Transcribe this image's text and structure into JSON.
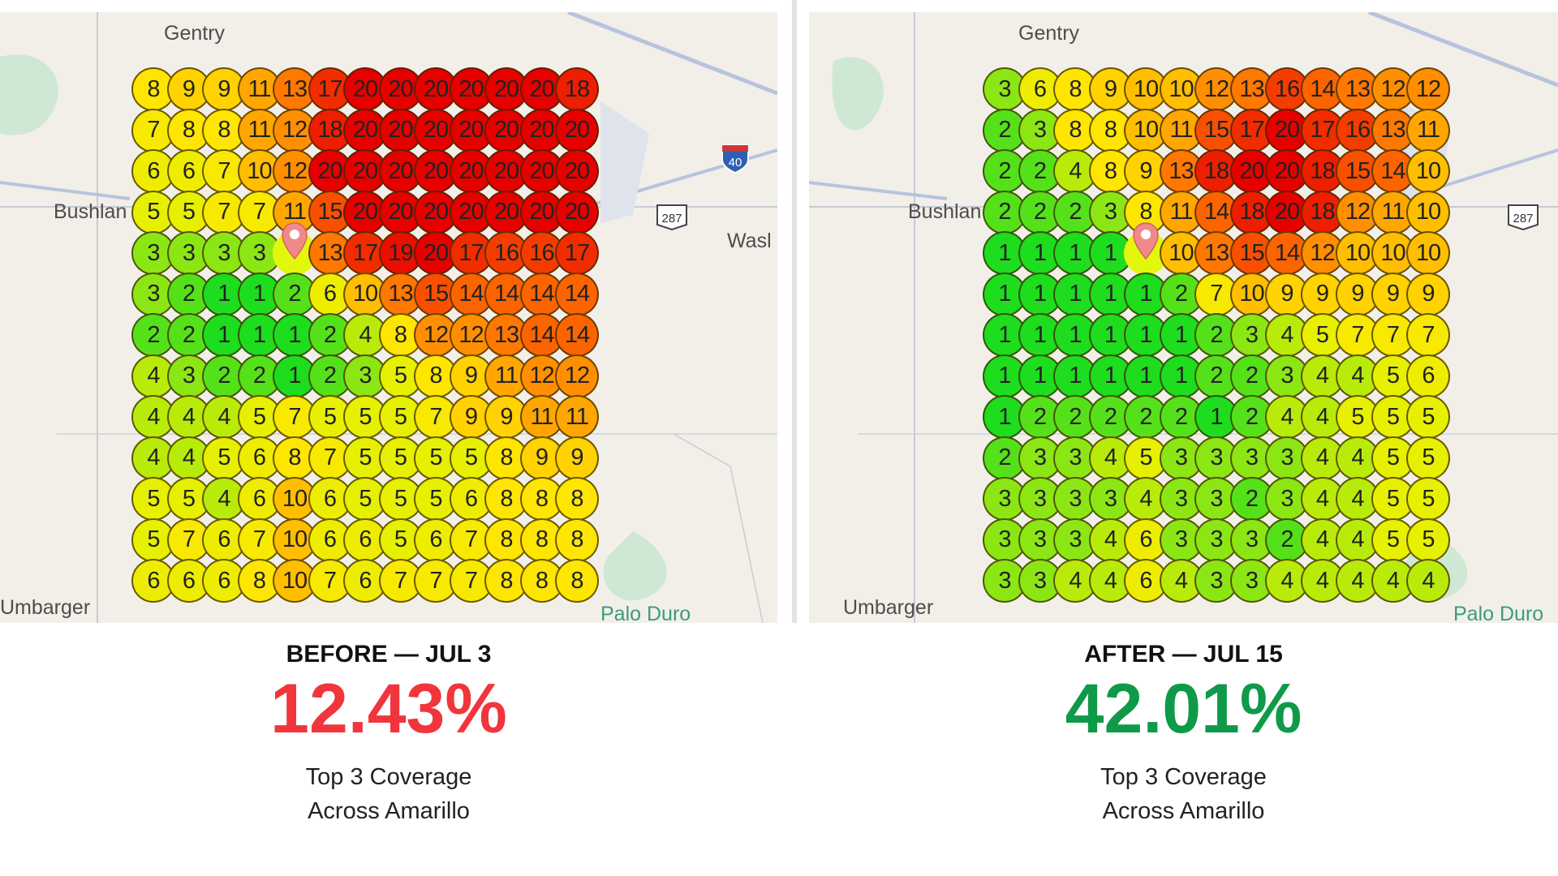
{
  "before": {
    "title": "BEFORE — JUL 3",
    "percent": "12.43%",
    "percent_color": "#f0363c",
    "subtitle_line1": "Top 3 Coverage",
    "subtitle_line2": "Across Amarillo",
    "places": {
      "gentry": "Gentry",
      "bushland": "Bushlan",
      "washburn": "Wasl",
      "umbarger": "Umbarger",
      "palo_duro": "Palo Duro"
    },
    "highway_labels": {
      "i40": "40",
      "us287": "287"
    },
    "pin_icon": "map-pin-icon",
    "grid": [
      [
        8,
        9,
        9,
        11,
        13,
        17,
        20,
        20,
        20,
        20,
        20,
        20,
        18
      ],
      [
        7,
        8,
        8,
        11,
        12,
        18,
        20,
        20,
        20,
        20,
        20,
        20,
        20
      ],
      [
        6,
        6,
        7,
        10,
        12,
        20,
        20,
        20,
        20,
        20,
        20,
        20,
        20
      ],
      [
        5,
        5,
        7,
        7,
        11,
        15,
        20,
        20,
        20,
        20,
        20,
        20,
        20
      ],
      [
        3,
        3,
        3,
        3,
        null,
        13,
        17,
        19,
        20,
        17,
        16,
        16,
        17
      ],
      [
        3,
        2,
        1,
        1,
        2,
        6,
        10,
        13,
        15,
        14,
        14,
        14,
        14
      ],
      [
        2,
        2,
        1,
        1,
        1,
        2,
        4,
        8,
        12,
        12,
        13,
        14,
        14
      ],
      [
        4,
        3,
        2,
        2,
        1,
        2,
        3,
        5,
        8,
        9,
        11,
        12,
        12
      ],
      [
        4,
        4,
        4,
        5,
        7,
        5,
        5,
        5,
        7,
        9,
        9,
        11,
        11
      ],
      [
        4,
        4,
        5,
        6,
        8,
        7,
        5,
        5,
        5,
        5,
        8,
        9,
        9
      ],
      [
        5,
        5,
        4,
        6,
        10,
        6,
        5,
        5,
        5,
        6,
        8,
        8,
        8
      ],
      [
        5,
        7,
        6,
        7,
        10,
        6,
        6,
        5,
        6,
        7,
        8,
        8,
        8
      ],
      [
        6,
        6,
        6,
        8,
        10,
        7,
        6,
        7,
        7,
        7,
        8,
        8,
        8
      ]
    ]
  },
  "after": {
    "title": "AFTER — JUL 15",
    "percent": "42.01%",
    "percent_color": "#0e9a48",
    "subtitle_line1": "Top 3 Coverage",
    "subtitle_line2": "Across Amarillo",
    "places": {
      "gentry": "Gentry",
      "bushland": "Bushlan",
      "umbarger": "Umbarger",
      "palo_duro": "Palo Duro"
    },
    "highway_labels": {
      "us287": "287"
    },
    "pin_icon": "map-pin-icon",
    "grid": [
      [
        3,
        6,
        8,
        9,
        10,
        10,
        12,
        13,
        16,
        14,
        13,
        12,
        12
      ],
      [
        2,
        3,
        8,
        8,
        10,
        11,
        15,
        17,
        20,
        17,
        16,
        13,
        11
      ],
      [
        2,
        2,
        4,
        8,
        9,
        13,
        18,
        20,
        20,
        18,
        15,
        14,
        10
      ],
      [
        2,
        2,
        2,
        3,
        8,
        11,
        14,
        18,
        20,
        18,
        12,
        11,
        10
      ],
      [
        1,
        1,
        1,
        1,
        null,
        10,
        13,
        15,
        14,
        12,
        10,
        10,
        10
      ],
      [
        1,
        1,
        1,
        1,
        1,
        2,
        7,
        10,
        9,
        9,
        9,
        9,
        9
      ],
      [
        1,
        1,
        1,
        1,
        1,
        1,
        2,
        3,
        4,
        5,
        7,
        7,
        7
      ],
      [
        1,
        1,
        1,
        1,
        1,
        1,
        2,
        2,
        3,
        4,
        4,
        5,
        6
      ],
      [
        1,
        2,
        2,
        2,
        2,
        2,
        1,
        2,
        4,
        4,
        5,
        5,
        5
      ],
      [
        2,
        3,
        3,
        4,
        5,
        3,
        3,
        3,
        3,
        4,
        4,
        5,
        5
      ],
      [
        3,
        3,
        3,
        3,
        4,
        3,
        3,
        2,
        3,
        4,
        4,
        5,
        5
      ],
      [
        3,
        3,
        3,
        4,
        6,
        3,
        3,
        3,
        2,
        4,
        4,
        5,
        5
      ],
      [
        3,
        3,
        4,
        4,
        6,
        4,
        3,
        3,
        4,
        4,
        4,
        4,
        4
      ]
    ]
  }
}
